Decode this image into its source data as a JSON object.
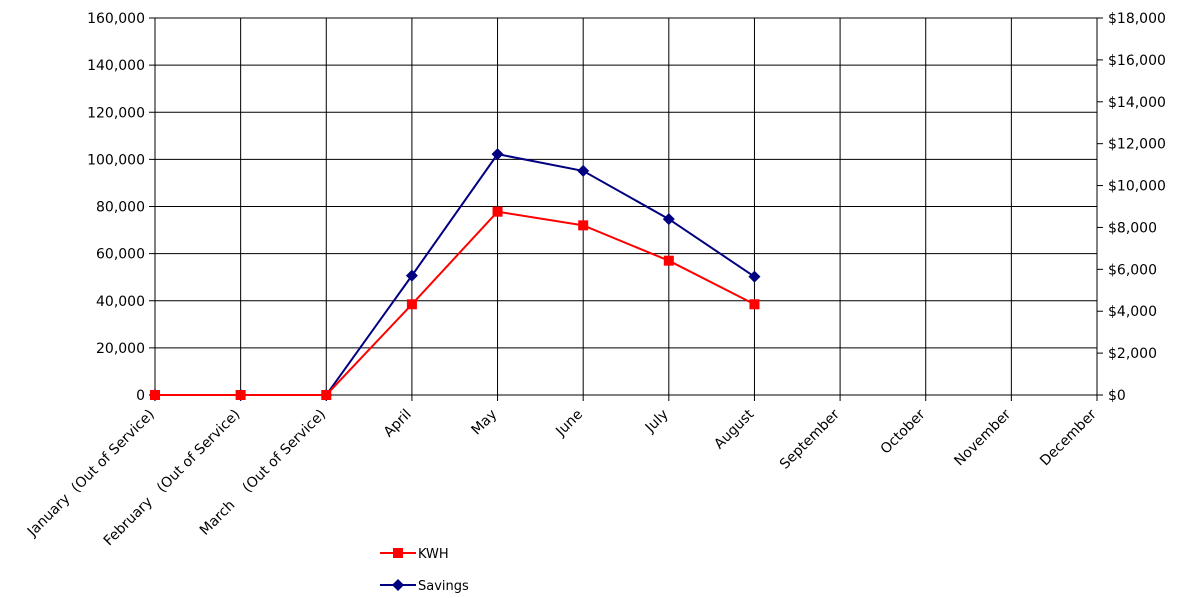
{
  "chart_data": {
    "type": "line",
    "title": "",
    "xlabel": "",
    "ylabel": "",
    "categories": [
      "January  (Out of Service)",
      "February   (Out of Service)",
      "March    (Out of Service)",
      "April",
      "May",
      "June",
      "July",
      "August",
      "September",
      "October",
      "November",
      "December"
    ],
    "y_left": {
      "ylim": [
        0,
        160000
      ],
      "ticks": [
        0,
        20000,
        40000,
        60000,
        80000,
        100000,
        120000,
        140000,
        160000
      ],
      "tick_labels": [
        "0",
        "20,000",
        "40,000",
        "60,000",
        "80,000",
        "100,000",
        "120,000",
        "140,000",
        "160,000"
      ]
    },
    "y_right": {
      "ylim": [
        0,
        18000
      ],
      "ticks": [
        0,
        2000,
        4000,
        6000,
        8000,
        10000,
        12000,
        14000,
        16000,
        18000
      ],
      "tick_labels": [
        "$0",
        "$2,000",
        "$4,000",
        "$6,000",
        "$8,000",
        "$10,000",
        "$12,000",
        "$14,000",
        "$16,000",
        "$18,000"
      ]
    },
    "series": [
      {
        "name": "KWH",
        "axis": "left",
        "color": "#ff0000",
        "marker": "square",
        "values": [
          0,
          0,
          0,
          38500,
          77800,
          72000,
          57000,
          38500,
          null,
          null,
          null,
          null
        ]
      },
      {
        "name": "Savings",
        "axis": "right",
        "color": "#000080",
        "marker": "diamond",
        "values": [
          0,
          0,
          0,
          5700,
          11500,
          10700,
          8400,
          5650,
          null,
          null,
          null,
          null
        ]
      }
    ],
    "grid": true,
    "legend_position": "bottom"
  }
}
